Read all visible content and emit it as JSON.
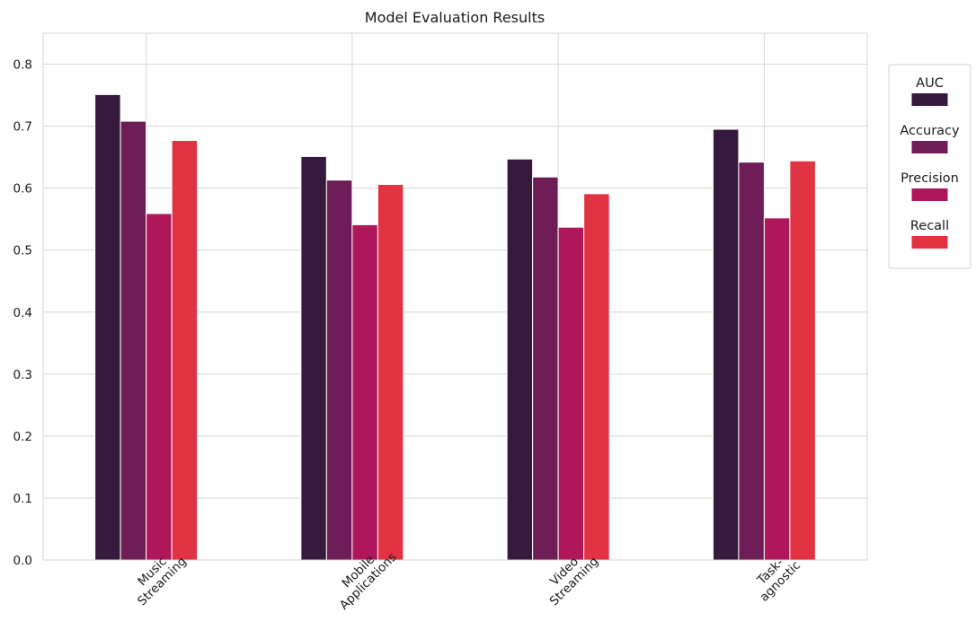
{
  "chart_data": {
    "type": "bar",
    "title": "Model Evaluation Results",
    "xlabel": "",
    "ylabel": "",
    "categories": [
      [
        "Music",
        "Streaming"
      ],
      [
        "Mobile",
        "Applications"
      ],
      [
        "Video",
        "Streaming"
      ],
      [
        "Task-",
        "agnostic"
      ]
    ],
    "series": [
      {
        "name": "AUC",
        "color": "#351a3d",
        "values": [
          0.751,
          0.651,
          0.647,
          0.695
        ]
      },
      {
        "name": "Accuracy",
        "color": "#6e1d56",
        "values": [
          0.708,
          0.613,
          0.618,
          0.642
        ]
      },
      {
        "name": "Precision",
        "color": "#ae1759",
        "values": [
          0.559,
          0.541,
          0.537,
          0.552
        ]
      },
      {
        "name": "Recall",
        "color": "#e13342",
        "values": [
          0.677,
          0.606,
          0.591,
          0.644
        ]
      }
    ],
    "ylim": [
      0,
      0.85
    ],
    "yticks": [
      0.0,
      0.1,
      0.2,
      0.3,
      0.4,
      0.5,
      0.6,
      0.7,
      0.8
    ],
    "grid": true,
    "legend": "right, outside plot"
  }
}
